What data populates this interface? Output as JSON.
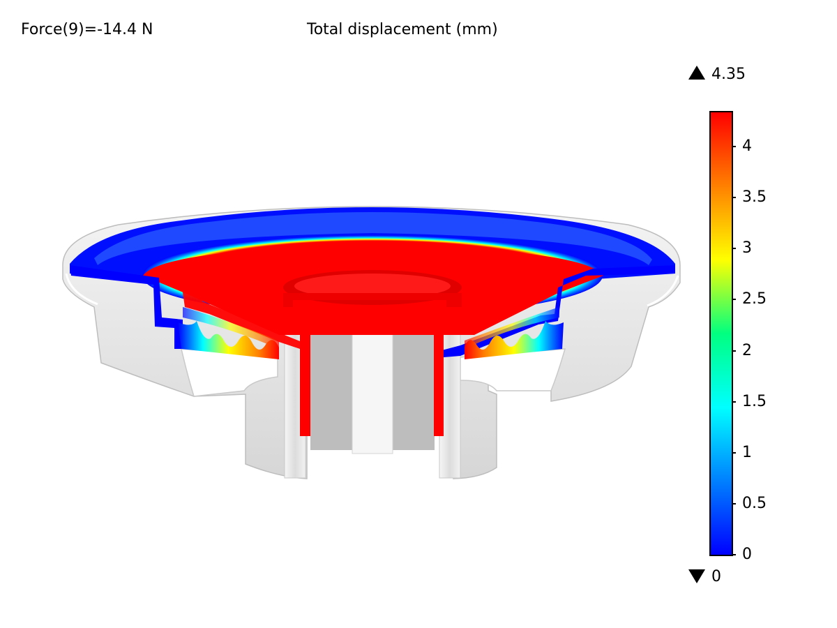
{
  "header": {
    "parameter_text": "Force(9)=-14.4 N",
    "title": "Total displacement (mm)"
  },
  "colorbar": {
    "max_label": "4.35",
    "min_label": "0",
    "range": [
      0,
      4.35
    ],
    "ticks": [
      "0",
      "0.5",
      "1",
      "1.5",
      "2",
      "2.5",
      "3",
      "3.5",
      "4"
    ],
    "tick_values": [
      0,
      0.5,
      1,
      1.5,
      2,
      2.5,
      3,
      3.5,
      4
    ],
    "colormap": [
      "#0000ff",
      "#0080ff",
      "#00ffff",
      "#00ff80",
      "#ffff00",
      "#ff8000",
      "#ff0000"
    ],
    "max_icon": "up-triangle-icon",
    "min_icon": "down-triangle-icon"
  },
  "colors": {
    "high": "#ff0000",
    "low": "#0000ff",
    "undeformed": "#e8e8e8"
  }
}
